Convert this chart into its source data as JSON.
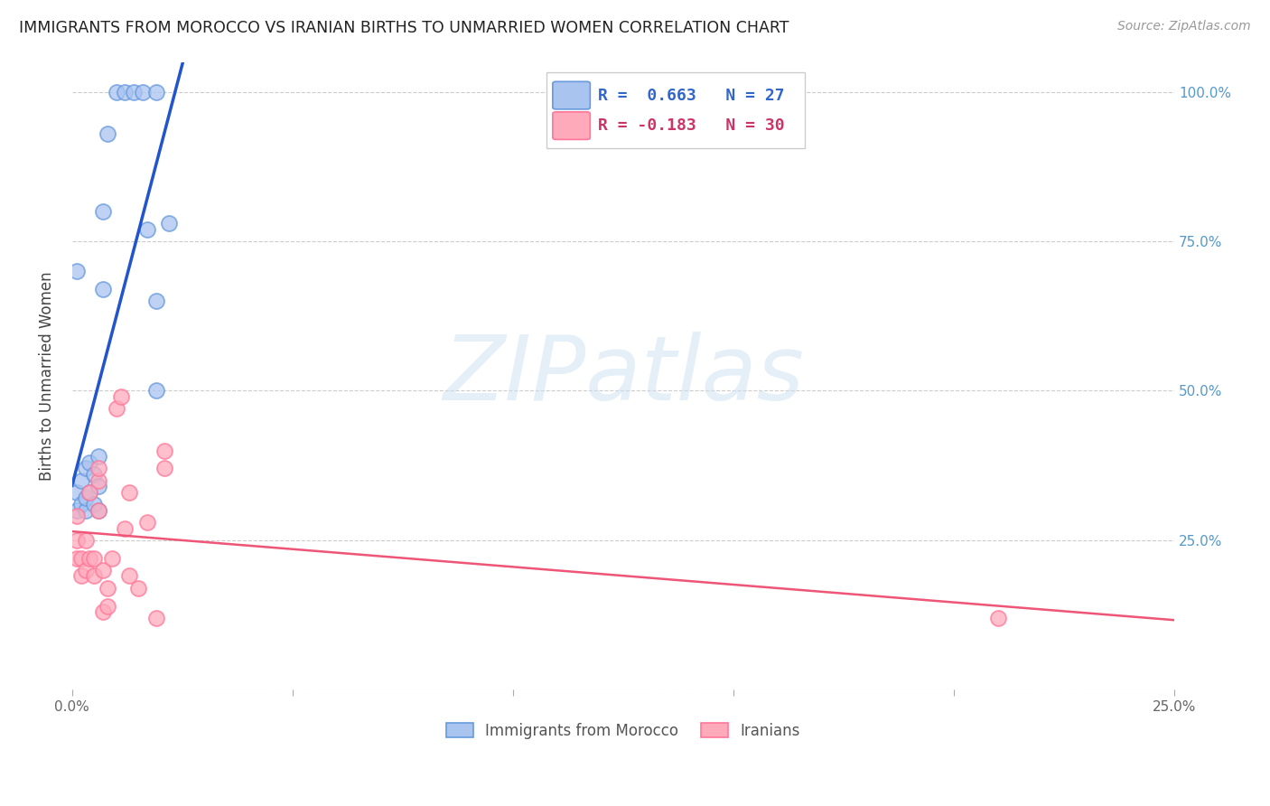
{
  "title": "IMMIGRANTS FROM MOROCCO VS IRANIAN BIRTHS TO UNMARRIED WOMEN CORRELATION CHART",
  "source": "Source: ZipAtlas.com",
  "ylabel": "Births to Unmarried Women",
  "watermark_text": "ZIPatlas",
  "blue_label": "Immigrants from Morocco",
  "pink_label": "Iranians",
  "legend_r1": "R =  0.663   N = 27",
  "legend_r2": "R = -0.183   N = 30",
  "xlim": [
    0.0,
    0.25
  ],
  "ylim": [
    0.0,
    1.05
  ],
  "yticks": [
    0.0,
    0.25,
    0.5,
    0.75,
    1.0
  ],
  "ytick_labels_right": [
    "",
    "25.0%",
    "50.0%",
    "75.0%",
    "100.0%"
  ],
  "blue_color_face": "#aac4f0",
  "blue_color_edge": "#6699dd",
  "pink_color_face": "#ffaabb",
  "pink_color_edge": "#ff7799",
  "blue_trend_color": "#2255cc",
  "pink_trend_color": "#ee5577",
  "right_tick_color": "#5599cc",
  "grid_color": "#cccccc",
  "blue_x": [
    0.001,
    0.001,
    0.001,
    0.002,
    0.002,
    0.003,
    0.003,
    0.003,
    0.004,
    0.004,
    0.005,
    0.005,
    0.006,
    0.006,
    0.006,
    0.007,
    0.007,
    0.008,
    0.01,
    0.012,
    0.014,
    0.016,
    0.017,
    0.019,
    0.019,
    0.019,
    0.022
  ],
  "blue_y": [
    0.3,
    0.33,
    0.7,
    0.31,
    0.35,
    0.3,
    0.32,
    0.37,
    0.33,
    0.38,
    0.31,
    0.36,
    0.3,
    0.34,
    0.39,
    0.67,
    0.8,
    0.93,
    1.0,
    1.0,
    1.0,
    1.0,
    0.77,
    0.65,
    1.0,
    0.5,
    0.78
  ],
  "pink_x": [
    0.001,
    0.001,
    0.001,
    0.002,
    0.002,
    0.003,
    0.003,
    0.004,
    0.004,
    0.005,
    0.005,
    0.006,
    0.006,
    0.006,
    0.007,
    0.007,
    0.008,
    0.008,
    0.009,
    0.01,
    0.011,
    0.012,
    0.013,
    0.013,
    0.015,
    0.017,
    0.019,
    0.021,
    0.021,
    0.21
  ],
  "pink_y": [
    0.22,
    0.25,
    0.29,
    0.19,
    0.22,
    0.2,
    0.25,
    0.22,
    0.33,
    0.19,
    0.22,
    0.3,
    0.35,
    0.37,
    0.13,
    0.2,
    0.14,
    0.17,
    0.22,
    0.47,
    0.49,
    0.27,
    0.19,
    0.33,
    0.17,
    0.28,
    0.12,
    0.4,
    0.37,
    0.12
  ]
}
